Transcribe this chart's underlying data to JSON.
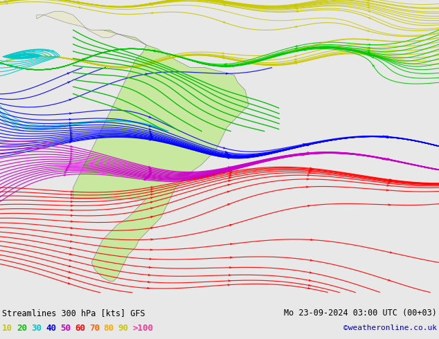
{
  "title_left": "Streamlines 300 hPa [kts] GFS",
  "title_right": "Mo 23-09-2024 03:00 UTC (00+03)",
  "credit": "©weatheronline.co.uk",
  "legend_values": [
    "10",
    "20",
    "30",
    "40",
    "50",
    "60",
    "70",
    "80",
    "90",
    ">100"
  ],
  "legend_colors": [
    "#c8c800",
    "#00c800",
    "#00c8c8",
    "#0000ff",
    "#c800c8",
    "#ff0000",
    "#ff6400",
    "#ffaa00",
    "#c8c800",
    "#ff3399"
  ],
  "fig_width": 6.34,
  "fig_height": 4.9,
  "dpi": 100,
  "bg_color": "#e8e8e8",
  "ocean_color": "#dcdcdc",
  "land_color": "#f0f0e0",
  "sa_land_color": "#c8e8a0",
  "bottom_bg": "#ffffff"
}
